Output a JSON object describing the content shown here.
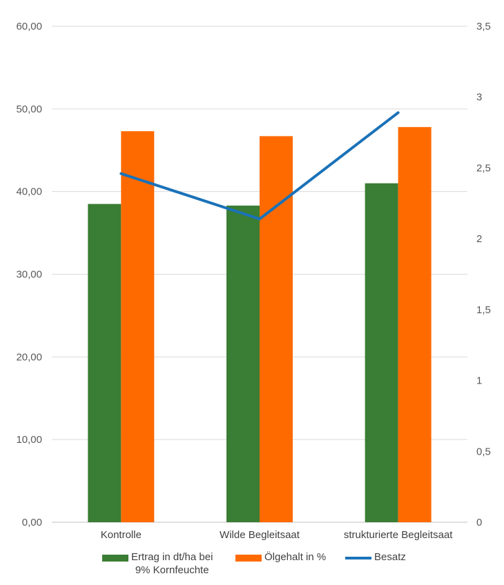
{
  "chart_data": {
    "type": "bar",
    "categories": [
      "Kontrolle",
      "Wilde Begleitsaat",
      "strukturierte Begleitsaat"
    ],
    "series": [
      {
        "name": "Ertrag in dt/ha bei\n9% Kornfeuchte",
        "kind": "bar",
        "axis": "left",
        "color": "#3a7d34",
        "values": [
          38.5,
          38.3,
          41.0
        ]
      },
      {
        "name": "Ölgehalt in %",
        "kind": "bar",
        "axis": "left",
        "color": "#ff6a00",
        "values": [
          47.3,
          46.7,
          47.8
        ]
      },
      {
        "name": "Besatz",
        "kind": "line",
        "axis": "right",
        "color": "#1a72b8",
        "values": [
          2.46,
          2.14,
          2.89
        ]
      }
    ],
    "y_left": {
      "min": 0,
      "max": 60,
      "ticks": [
        "0,00",
        "10,00",
        "20,00",
        "30,00",
        "40,00",
        "50,00",
        "60,00"
      ]
    },
    "y_right": {
      "min": 0,
      "max": 3.5,
      "ticks": [
        "0",
        "0,5",
        "1",
        "1,5",
        "2",
        "2,5",
        "3",
        "3,5"
      ]
    },
    "grid": true,
    "legend_position": "bottom"
  }
}
